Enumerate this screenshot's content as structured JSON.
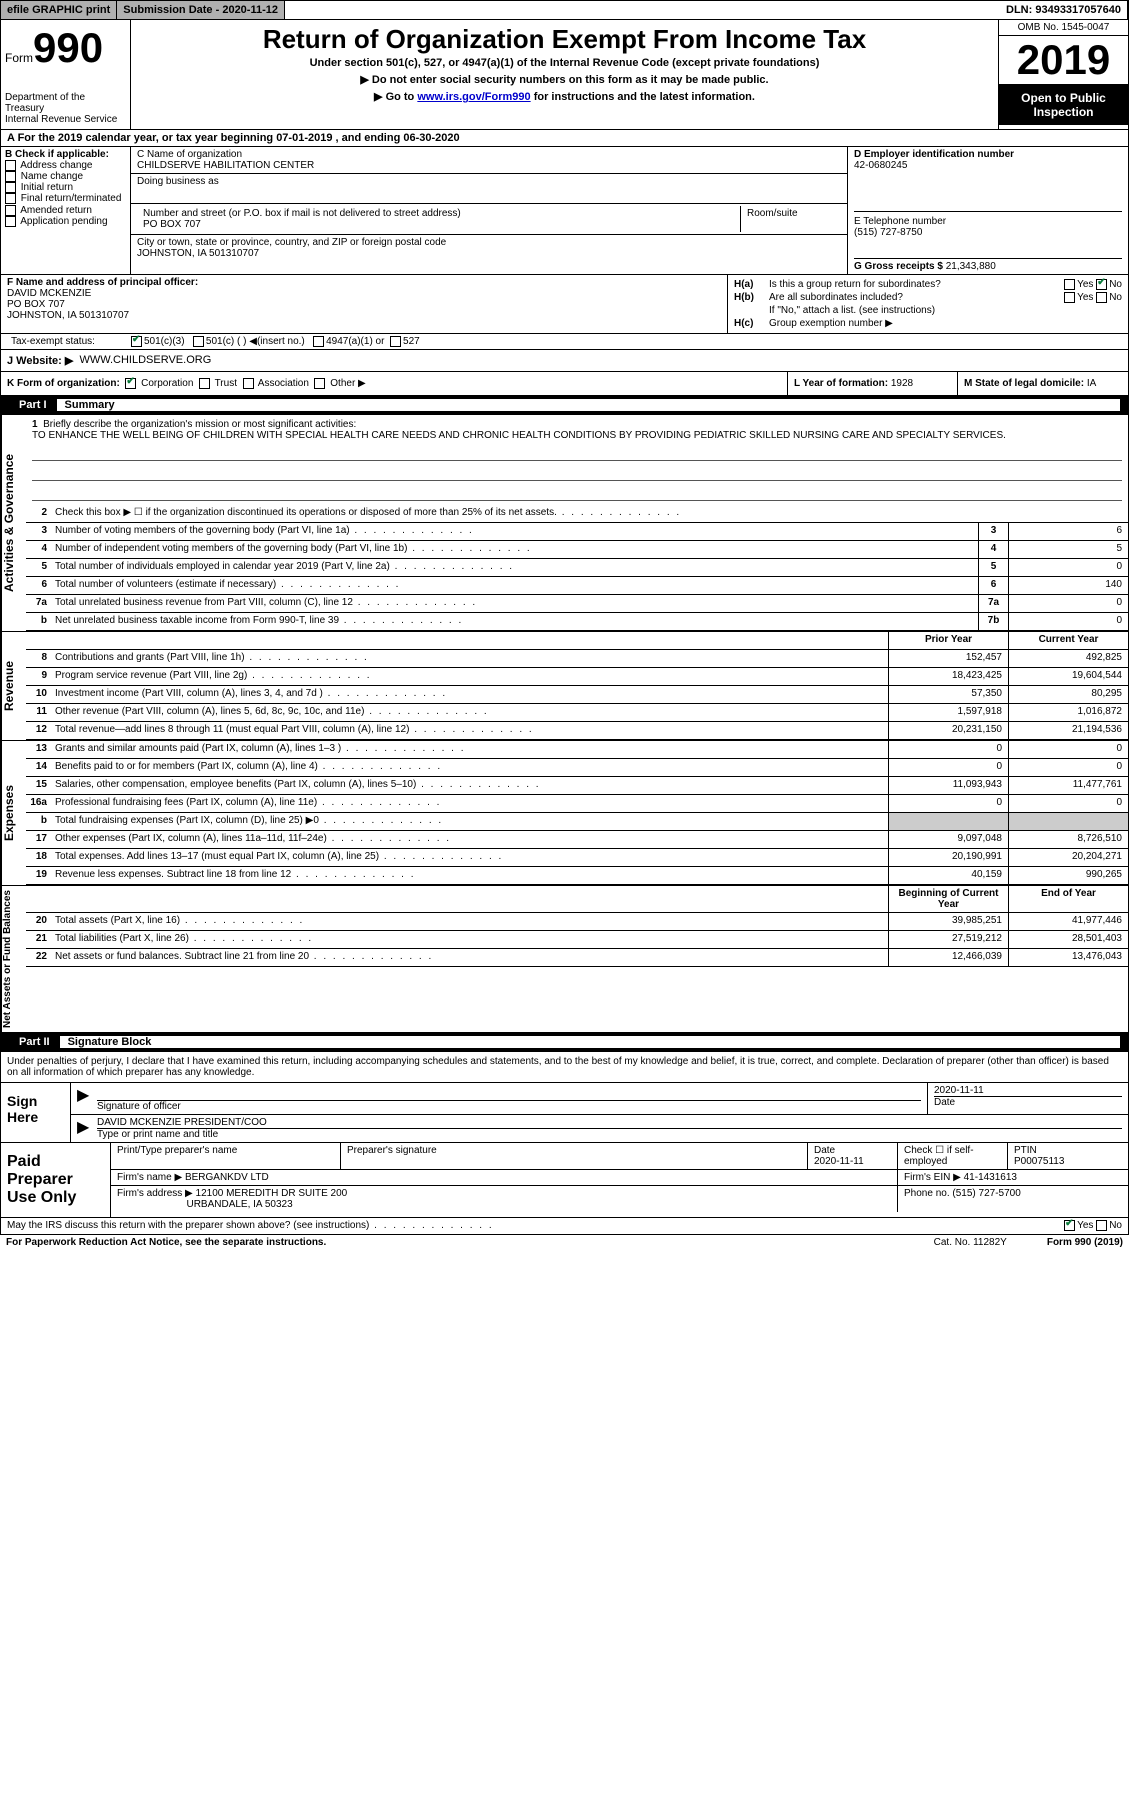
{
  "header_bar": {
    "efile": "efile GRAPHIC print",
    "sub_date_label": "Submission Date - ",
    "sub_date": "2020-11-12",
    "dln": "DLN: 93493317057640"
  },
  "top": {
    "form_word": "Form",
    "form_no": "990",
    "dept": "Department of the Treasury\nInternal Revenue Service",
    "title": "Return of Organization Exempt From Income Tax",
    "sub": "Under section 501(c), 527, or 4947(a)(1) of the Internal Revenue Code (except private foundations)",
    "arrow1": "▶ Do not enter social security numbers on this form as it may be made public.",
    "arrow2_pre": "▶ Go to ",
    "arrow2_link": "www.irs.gov/Form990",
    "arrow2_post": " for instructions and the latest information.",
    "omb": "OMB No. 1545-0047",
    "year": "2019",
    "public": "Open to Public Inspection"
  },
  "period": "A For the 2019 calendar year, or tax year beginning 07-01-2019     , and ending 06-30-2020",
  "box_b": {
    "label": "B Check if applicable:",
    "items": [
      "Address change",
      "Name change",
      "Initial return",
      "Final return/terminated",
      "Amended return",
      "Application pending"
    ]
  },
  "box_c": {
    "name_label": "C Name of organization",
    "name": "CHILDSERVE HABILITATION CENTER",
    "dba_label": "Doing business as",
    "dba": "",
    "addr_label": "Number and street (or P.O. box if mail is not delivered to street address)",
    "addr": "PO BOX 707",
    "room_label": "Room/suite",
    "city_label": "City or town, state or province, country, and ZIP or foreign postal code",
    "city": "JOHNSTON, IA  501310707"
  },
  "box_d": {
    "ein_label": "D Employer identification number",
    "ein": "42-0680245",
    "phone_label": "E Telephone number",
    "phone": "(515) 727-8750",
    "gross_label": "G Gross receipts $",
    "gross": "21,343,880"
  },
  "box_f": {
    "label": "F  Name and address of principal officer:",
    "name": "DAVID MCKENZIE",
    "addr1": "PO BOX 707",
    "addr2": "JOHNSTON, IA  501310707"
  },
  "box_h": {
    "a_label": "H(a)",
    "a_text": "Is this a group return for subordinates?",
    "b_label": "H(b)",
    "b_text": "Are all subordinates included?",
    "b_note": "If \"No,\" attach a list. (see instructions)",
    "c_label": "H(c)",
    "c_text": "Group exemption number ▶"
  },
  "tax_status": {
    "label": "Tax-exempt status:",
    "opts": [
      "501(c)(3)",
      "501(c) (  ) ◀(insert no.)",
      "4947(a)(1) or",
      "527"
    ]
  },
  "website": {
    "label": "J  Website: ▶",
    "value": "WWW.CHILDSERVE.ORG"
  },
  "korg": {
    "k": "K Form of organization:",
    "opts": [
      "Corporation",
      "Trust",
      "Association",
      "Other ▶"
    ],
    "l_label": "L Year of formation:",
    "l_val": "1928",
    "m_label": "M State of legal domicile:",
    "m_val": "IA"
  },
  "part1": {
    "label": "Part I",
    "title": "Summary"
  },
  "mission": {
    "num": "1",
    "label": "Briefly describe the organization's mission or most significant activities:",
    "text": "TO ENHANCE THE WELL BEING OF CHILDREN WITH SPECIAL HEALTH CARE NEEDS AND CHRONIC HEALTH CONDITIONS BY PROVIDING PEDIATRIC SKILLED NURSING CARE AND SPECIALTY SERVICES."
  },
  "gov_lines": [
    {
      "n": "2",
      "t": "Check this box ▶ ☐  if the organization discontinued its operations or disposed of more than 25% of its net assets.",
      "box": "",
      "v": ""
    },
    {
      "n": "3",
      "t": "Number of voting members of the governing body (Part VI, line 1a)",
      "box": "3",
      "v": "6"
    },
    {
      "n": "4",
      "t": "Number of independent voting members of the governing body (Part VI, line 1b)",
      "box": "4",
      "v": "5"
    },
    {
      "n": "5",
      "t": "Total number of individuals employed in calendar year 2019 (Part V, line 2a)",
      "box": "5",
      "v": "0"
    },
    {
      "n": "6",
      "t": "Total number of volunteers (estimate if necessary)",
      "box": "6",
      "v": "140"
    },
    {
      "n": "7a",
      "t": "Total unrelated business revenue from Part VIII, column (C), line 12",
      "box": "7a",
      "v": "0"
    },
    {
      "n": "b",
      "t": "Net unrelated business taxable income from Form 990-T, line 39",
      "box": "7b",
      "v": "0"
    }
  ],
  "col_headers": {
    "prior": "Prior Year",
    "current": "Current Year"
  },
  "rev_lines": [
    {
      "n": "8",
      "t": "Contributions and grants (Part VIII, line 1h)",
      "p": "152,457",
      "c": "492,825"
    },
    {
      "n": "9",
      "t": "Program service revenue (Part VIII, line 2g)",
      "p": "18,423,425",
      "c": "19,604,544"
    },
    {
      "n": "10",
      "t": "Investment income (Part VIII, column (A), lines 3, 4, and 7d )",
      "p": "57,350",
      "c": "80,295"
    },
    {
      "n": "11",
      "t": "Other revenue (Part VIII, column (A), lines 5, 6d, 8c, 9c, 10c, and 11e)",
      "p": "1,597,918",
      "c": "1,016,872"
    },
    {
      "n": "12",
      "t": "Total revenue—add lines 8 through 11 (must equal Part VIII, column (A), line 12)",
      "p": "20,231,150",
      "c": "21,194,536"
    }
  ],
  "exp_lines": [
    {
      "n": "13",
      "t": "Grants and similar amounts paid (Part IX, column (A), lines 1–3 )",
      "p": "0",
      "c": "0"
    },
    {
      "n": "14",
      "t": "Benefits paid to or for members (Part IX, column (A), line 4)",
      "p": "0",
      "c": "0"
    },
    {
      "n": "15",
      "t": "Salaries, other compensation, employee benefits (Part IX, column (A), lines 5–10)",
      "p": "11,093,943",
      "c": "11,477,761"
    },
    {
      "n": "16a",
      "t": "Professional fundraising fees (Part IX, column (A), line 11e)",
      "p": "0",
      "c": "0"
    },
    {
      "n": "b",
      "t": "Total fundraising expenses (Part IX, column (D), line 25) ▶0",
      "p": "",
      "c": "",
      "shaded": true
    },
    {
      "n": "17",
      "t": "Other expenses (Part IX, column (A), lines 11a–11d, 11f–24e)",
      "p": "9,097,048",
      "c": "8,726,510"
    },
    {
      "n": "18",
      "t": "Total expenses. Add lines 13–17 (must equal Part IX, column (A), line 25)",
      "p": "20,190,991",
      "c": "20,204,271"
    },
    {
      "n": "19",
      "t": "Revenue less expenses. Subtract line 18 from line 12",
      "p": "40,159",
      "c": "990,265"
    }
  ],
  "net_headers": {
    "begin": "Beginning of Current Year",
    "end": "End of Year"
  },
  "net_lines": [
    {
      "n": "20",
      "t": "Total assets (Part X, line 16)",
      "p": "39,985,251",
      "c": "41,977,446"
    },
    {
      "n": "21",
      "t": "Total liabilities (Part X, line 26)",
      "p": "27,519,212",
      "c": "28,501,403"
    },
    {
      "n": "22",
      "t": "Net assets or fund balances. Subtract line 21 from line 20",
      "p": "12,466,039",
      "c": "13,476,043"
    }
  ],
  "part2": {
    "label": "Part II",
    "title": "Signature Block"
  },
  "sig_text": "Under penalties of perjury, I declare that I have examined this return, including accompanying schedules and statements, and to the best of my knowledge and belief, it is true, correct, and complete. Declaration of preparer (other than officer) is based on all information of which preparer has any knowledge.",
  "sign": {
    "left": "Sign Here",
    "sig_label": "Signature of officer",
    "date": "2020-11-11",
    "date_label": "Date",
    "name": "DAVID MCKENZIE PRESIDENT/COO",
    "name_label": "Type or print name and title"
  },
  "prep": {
    "left": "Paid Preparer Use Only",
    "h1": "Print/Type preparer's name",
    "h2": "Preparer's signature",
    "h3_label": "Date",
    "h3": "2020-11-11",
    "h4": "Check ☐ if self-employed",
    "h5_label": "PTIN",
    "h5": "P00075113",
    "firm_label": "Firm's name      ▶",
    "firm": "BERGANKDV LTD",
    "ein_label": "Firm's EIN ▶",
    "ein": "41-1431613",
    "addr_label": "Firm's address ▶",
    "addr1": "12100 MEREDITH DR SUITE 200",
    "addr2": "URBANDALE, IA  50323",
    "phone_label": "Phone no.",
    "phone": "(515) 727-5700"
  },
  "irs_q": "May the IRS discuss this return with the preparer shown above? (see instructions)",
  "footer": {
    "left": "For Paperwork Reduction Act Notice, see the separate instructions.",
    "mid": "Cat. No. 11282Y",
    "right": "Form 990 (2019)"
  },
  "side_labels": {
    "gov": "Activities & Governance",
    "rev": "Revenue",
    "exp": "Expenses",
    "net": "Net Assets or Fund Balances"
  }
}
